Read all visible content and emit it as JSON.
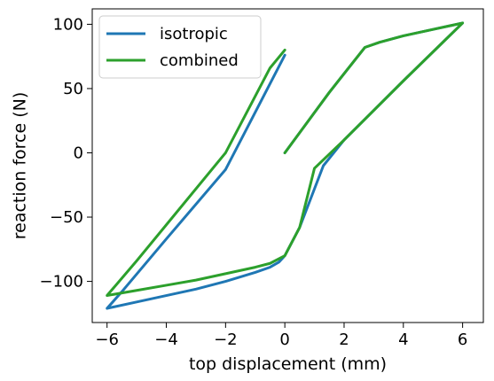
{
  "chart_data": {
    "type": "line",
    "title": "",
    "xlabel": "top displacement (mm)",
    "ylabel": "reaction force (N)",
    "xlim": [
      -6.5,
      6.7
    ],
    "ylim": [
      -132,
      112
    ],
    "xticks": [
      -6,
      -4,
      -2,
      0,
      2,
      4,
      6
    ],
    "xtick_labels": [
      "−6",
      "−4",
      "−2",
      "0",
      "2",
      "4",
      "6"
    ],
    "yticks": [
      -100,
      -50,
      0,
      50,
      100
    ],
    "ytick_labels": [
      "−100",
      "−50",
      "0",
      "50",
      "100"
    ],
    "grid": false,
    "legend_position": "top-left",
    "series": [
      {
        "name": "isotropic",
        "color": "#1f77b4",
        "x": [
          0,
          1.5,
          2.7,
          3.2,
          4.0,
          5.0,
          6.0,
          4.0,
          2.0,
          1.3,
          0.5,
          0.0,
          -0.2,
          -0.5,
          -1.0,
          -2.0,
          -3.0,
          -4.0,
          -5.0,
          -6.0,
          -5.5,
          -4.0,
          -2.0,
          0.0
        ],
        "y": [
          0,
          47,
          82,
          86,
          91,
          96,
          101,
          56,
          10,
          -10,
          -58,
          -80,
          -85,
          -89,
          -93,
          -100,
          -106,
          -111,
          -116,
          -121,
          -108,
          -67,
          -13,
          76
        ]
      },
      {
        "name": "combined",
        "color": "#2ca02c",
        "x": [
          0,
          1.5,
          2.7,
          3.2,
          4.0,
          5.0,
          6.0,
          4.0,
          2.0,
          1.0,
          0.5,
          0.0,
          -0.5,
          -1.0,
          -2.0,
          -3.0,
          -4.0,
          -5.0,
          -6.0,
          -5.0,
          -4.0,
          -2.0,
          -0.5,
          0.0
        ],
        "y": [
          0,
          47,
          82,
          86,
          91,
          96,
          101,
          56,
          10,
          -12,
          -58,
          -80,
          -86,
          -89,
          -94,
          -99,
          -103,
          -107,
          -111,
          -84,
          -56,
          0,
          66,
          80
        ]
      }
    ]
  }
}
